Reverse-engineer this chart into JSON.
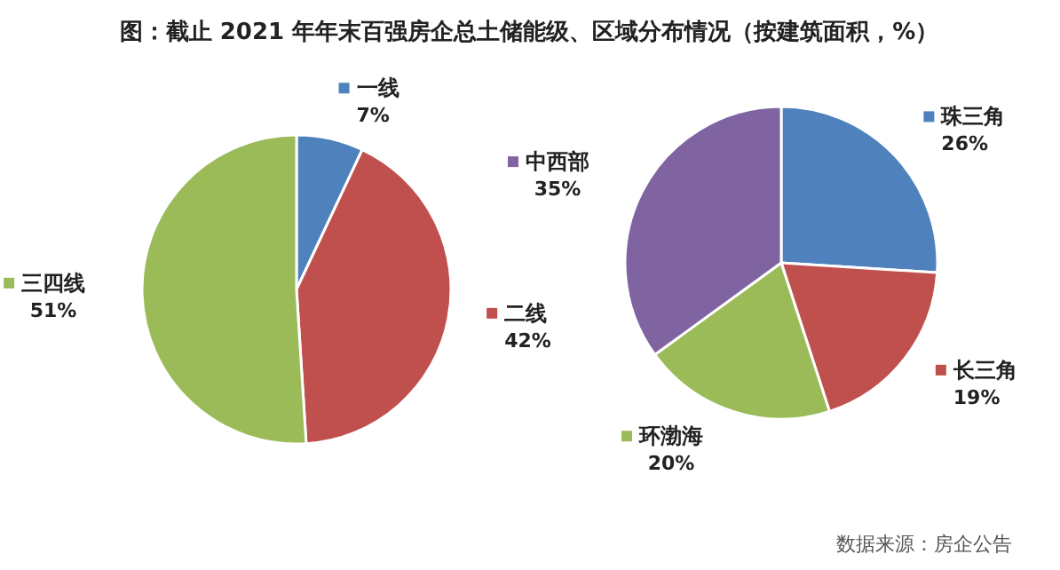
{
  "chart_data": [
    {
      "type": "pie",
      "title": "图：截止 2021 年年末百强房企总土储能级、区域分布情况（按建筑面积，%）",
      "categories": [
        "一线",
        "二线",
        "三四线"
      ],
      "values": [
        7,
        42,
        51
      ],
      "colors": [
        "#4f81bd",
        "#c0504d",
        "#9bbb59"
      ],
      "value_labels": [
        "7%",
        "42%",
        "51%"
      ],
      "legend": "top left"
    },
    {
      "type": "pie",
      "categories": [
        "珠三角",
        "长三角",
        "环渤海",
        "中西部"
      ],
      "values": [
        26,
        19,
        20,
        35
      ],
      "colors": [
        "#4f81bd",
        "#c0504d",
        "#9bbb59",
        "#8064a2"
      ],
      "value_labels": [
        "26%",
        "19%",
        "20%",
        "35%"
      ],
      "legend": "bottom left",
      "annotations": [
        "数据来源：房企公告"
      ]
    }
  ]
}
